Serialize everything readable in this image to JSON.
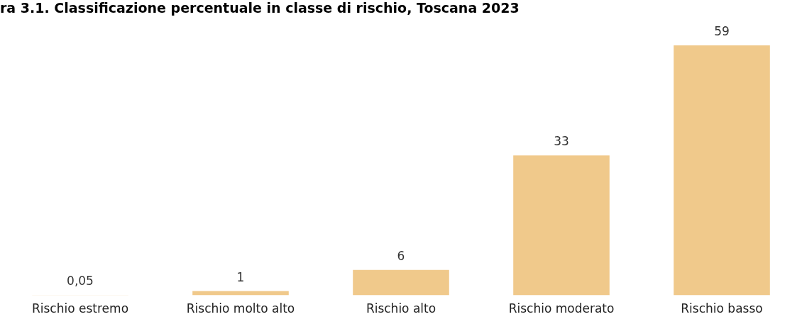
{
  "chart_data": {
    "type": "bar",
    "title": "ra 3.1. Classificazione percentuale in classe di rischio, Toscana 2023",
    "categories": [
      "Rischio estremo",
      "Rischio molto alto",
      "Rischio alto",
      "Rischio moderato",
      "Rischio basso"
    ],
    "values": [
      0.05,
      1,
      6,
      33,
      59
    ],
    "value_labels": [
      "0,05",
      "1",
      "6",
      "33",
      "59"
    ],
    "color": "#f0c98b",
    "grid": false,
    "legend": false
  }
}
